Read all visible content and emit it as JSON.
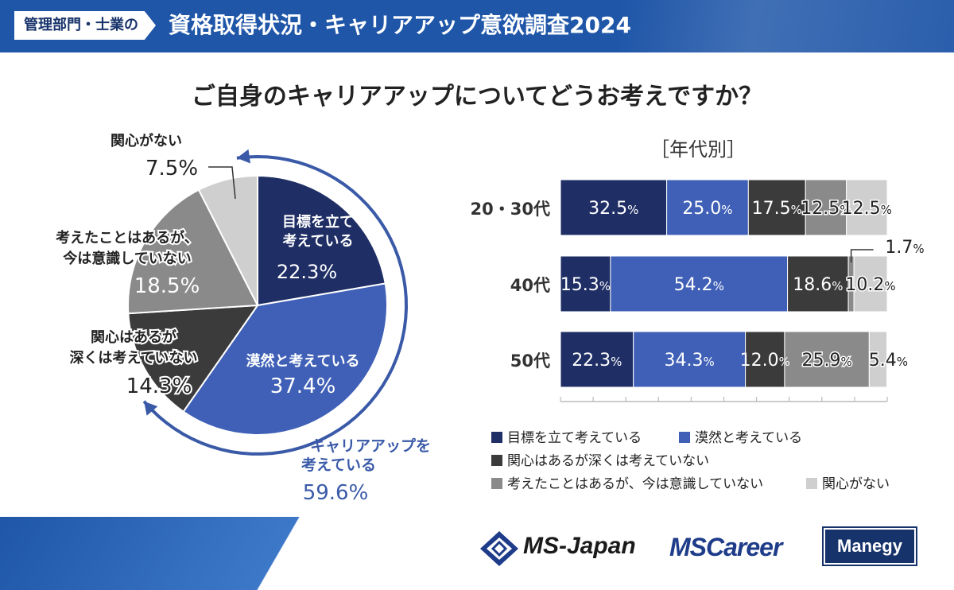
{
  "header": {
    "tag": "管理部門・士業の",
    "title": "資格取得状況・キャリアアップ意欲調査2024"
  },
  "question": "ご自身のキャリアアップについてどうお考えですか？",
  "subtitle": "［年代別］",
  "colors": {
    "c1": "#1f2f66",
    "c2": "#3f60b6",
    "c3": "#3b3b3b",
    "c4": "#8a8a8a",
    "c5": "#cfcfcf",
    "accent": "#3a5aa8"
  },
  "chart_data": [
    {
      "type": "pie",
      "title": "ご自身のキャリアアップについてどうお考えですか？",
      "categories": [
        "目標を立て考えている",
        "漠然と考えている",
        "関心はあるが深くは考えていない",
        "考えたことはあるが、今は意識していない",
        "関心がない"
      ],
      "values": [
        22.3,
        37.4,
        14.3,
        18.5,
        7.5
      ],
      "labels": [
        {
          "l1": "目標を立て",
          "l2": "考えている",
          "v": "22.3%"
        },
        {
          "l1": "漠然と考えている",
          "l2": "",
          "v": "37.4%"
        },
        {
          "l1": "関心はあるが",
          "l2": "深くは考えていない",
          "v": "14.3%"
        },
        {
          "l1": "考えたことはあるが、",
          "l2": "今は意識していない",
          "v": "18.5%"
        },
        {
          "l1": "関心がない",
          "l2": "",
          "v": "7.5%"
        }
      ],
      "annotation": {
        "l1": "キャリアアップを",
        "l2": "考えている",
        "v": "59.6%"
      }
    },
    {
      "type": "bar",
      "orientation": "horizontal",
      "stacked": true,
      "title": "［年代別］",
      "categories": [
        "20・30代",
        "40代",
        "50代"
      ],
      "xlim": [
        0,
        100
      ],
      "series": [
        {
          "name": "目標を立て考えている",
          "values": [
            32.5,
            15.3,
            22.3
          ]
        },
        {
          "name": "漠然と考えている",
          "values": [
            25.0,
            54.2,
            34.3
          ]
        },
        {
          "name": "関心はあるが深くは考えていない",
          "values": [
            17.5,
            18.6,
            12.0
          ]
        },
        {
          "name": "考えたことはあるが、今は意識していない",
          "values": [
            12.5,
            1.7,
            25.9
          ]
        },
        {
          "name": "関心がない",
          "values": [
            12.5,
            10.2,
            5.4
          ]
        }
      ],
      "value_labels": [
        [
          "32.5",
          "25.0",
          "17.5",
          "12.5",
          "12.5"
        ],
        [
          "15.3",
          "54.2",
          "18.6",
          "1.7",
          "10.2"
        ],
        [
          "22.3",
          "34.3",
          "12.0",
          "25.9",
          "5.4"
        ]
      ],
      "unit": "%"
    }
  ],
  "legend": [
    "目標を立て考えている",
    "漠然と考えている",
    "関心はあるが深くは考えていない",
    "考えたことはあるが、今は意識していない",
    "関心がない"
  ],
  "logos": {
    "msjapan": "MS-Japan",
    "mscareer": "MSCareer",
    "manegy": "Manegy"
  }
}
